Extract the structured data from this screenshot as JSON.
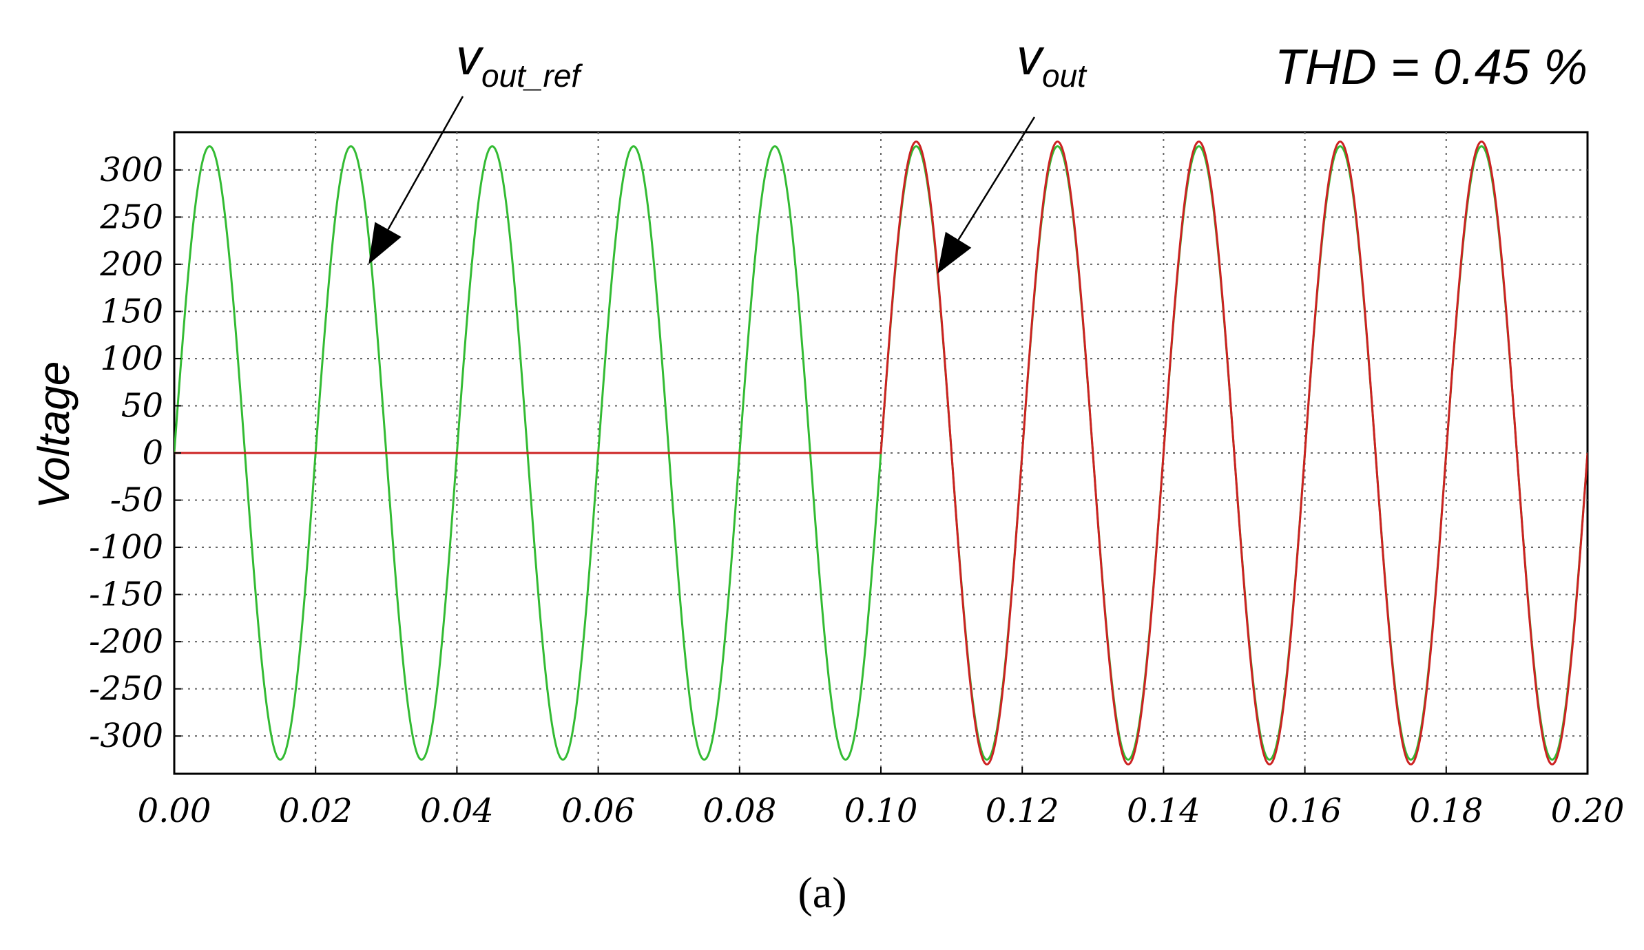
{
  "chart_data": {
    "type": "line",
    "title": "",
    "xlabel": "",
    "ylabel": "Voltage",
    "xlim": [
      0.0,
      0.2
    ],
    "ylim": [
      -340,
      340
    ],
    "grid": true,
    "x_ticks": [
      "0.00",
      "0.02",
      "0.04",
      "0.06",
      "0.08",
      "0.10",
      "0.12",
      "0.14",
      "0.16",
      "0.18",
      "0.20"
    ],
    "y_ticks": [
      "300",
      "250",
      "200",
      "150",
      "100",
      "50",
      "0",
      "-50",
      "-100",
      "-150",
      "-200",
      "-250",
      "-300"
    ],
    "x_tick_values": [
      0.0,
      0.02,
      0.04,
      0.06,
      0.08,
      0.1,
      0.12,
      0.14,
      0.16,
      0.18,
      0.2
    ],
    "y_tick_values": [
      300,
      250,
      200,
      150,
      100,
      50,
      0,
      -50,
      -100,
      -150,
      -200,
      -250,
      -300
    ],
    "series": [
      {
        "name": "v_out_ref",
        "color": "#33bb33",
        "kind": "sine",
        "amplitude": 325,
        "frequency_hz": 50,
        "t_start": 0.0,
        "t_end": 0.2
      },
      {
        "name": "v_out",
        "color": "#cc2222",
        "kind": "sine_after_start",
        "amplitude": 330,
        "frequency_hz": 50,
        "value_before_start": 0,
        "t_start": 0.1,
        "t_end": 0.2
      }
    ],
    "annotations": {
      "ref_label_main": "v",
      "ref_label_sub": "out_ref",
      "out_label_main": "v",
      "out_label_sub": "out",
      "thd": "THD = 0.45 %",
      "ref_arrow_target": {
        "x": 0.0275,
        "y": 200
      },
      "out_arrow_target": {
        "x": 0.108,
        "y": 190
      }
    }
  },
  "caption": "(a)"
}
